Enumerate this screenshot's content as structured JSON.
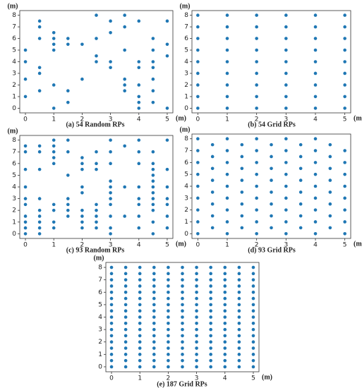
{
  "chart_data": [
    {
      "type": "scatter",
      "title": "(a) 54 Random RPs",
      "xlabel": "(m)",
      "ylabel": "(m)",
      "color": "#1f77b4",
      "xlim": [
        -0.2,
        5.2
      ],
      "ylim": [
        -0.4,
        8.4
      ],
      "xticks": [
        0,
        1,
        2,
        3,
        4,
        5
      ],
      "yticks": [
        0,
        1,
        2,
        3,
        4,
        5,
        6,
        7,
        8
      ],
      "x": [
        0,
        0,
        0,
        0,
        0.5,
        0.5,
        0.5,
        0.5,
        0.5,
        0.5,
        1,
        1,
        1,
        1,
        1,
        1,
        1.5,
        1.5,
        1.5,
        1.5,
        2,
        2,
        2.5,
        2.5,
        2.5,
        2.5,
        3,
        3,
        3,
        3,
        3.5,
        3.5,
        3.5,
        3.5,
        3.5,
        3.5,
        4,
        4,
        4,
        4,
        4,
        4,
        4,
        4.5,
        4.5,
        4.5,
        4.5,
        4.5,
        4.5,
        4.5,
        5,
        5,
        5,
        5
      ],
      "values": [
        5,
        4,
        2.5,
        1,
        7.5,
        7,
        6,
        3.5,
        3,
        1.5,
        6.5,
        6,
        5.5,
        5,
        2,
        0,
        6,
        5.5,
        1.5,
        0.5,
        5.5,
        2.5,
        8,
        6,
        4.5,
        4,
        7.5,
        6.5,
        4,
        3.5,
        8,
        7,
        5,
        2.5,
        2,
        1.5,
        7.5,
        4,
        3.5,
        2,
        1,
        0.5,
        0,
        6,
        5,
        4,
        3.5,
        2.5,
        1.5,
        0.5,
        7.5,
        5.5,
        4.5,
        0
      ]
    },
    {
      "type": "scatter",
      "title": "(b) 54 Grid RPs",
      "xlabel": "(m)",
      "ylabel": "(m)",
      "color": "#1f77b4",
      "xlim": [
        -0.2,
        5.2
      ],
      "ylim": [
        -0.4,
        8.4
      ],
      "xticks": [
        0,
        1,
        2,
        3,
        4,
        5
      ],
      "yticks": [
        0,
        1,
        2,
        3,
        4,
        5,
        6,
        7,
        8
      ],
      "x": [
        0,
        0,
        0,
        0,
        0,
        0,
        0,
        0,
        0,
        1,
        1,
        1,
        1,
        1,
        1,
        1,
        1,
        1,
        2,
        2,
        2,
        2,
        2,
        2,
        2,
        2,
        2,
        3,
        3,
        3,
        3,
        3,
        3,
        3,
        3,
        3,
        4,
        4,
        4,
        4,
        4,
        4,
        4,
        4,
        4,
        5,
        5,
        5,
        5,
        5,
        5,
        5,
        5,
        5
      ],
      "values": [
        0,
        1,
        2,
        3,
        4,
        5,
        6,
        7,
        8,
        0,
        1,
        2,
        3,
        4,
        5,
        6,
        7,
        8,
        0,
        1,
        2,
        3,
        4,
        5,
        6,
        7,
        8,
        0,
        1,
        2,
        3,
        4,
        5,
        6,
        7,
        8,
        0,
        1,
        2,
        3,
        4,
        5,
        6,
        7,
        8,
        0,
        1,
        2,
        3,
        4,
        5,
        6,
        7,
        8
      ]
    },
    {
      "type": "scatter",
      "title": "(c) 93 Random RPs",
      "xlabel": "(m)",
      "ylabel": "(m)",
      "color": "#1f77b4",
      "xlim": [
        -0.2,
        5.2
      ],
      "ylim": [
        -0.4,
        8.4
      ],
      "xticks": [
        0,
        1,
        2,
        3,
        4,
        5
      ],
      "yticks": [
        0,
        1,
        2,
        3,
        4,
        5,
        6,
        7,
        8
      ],
      "x": [
        0,
        0,
        0,
        0,
        0,
        0,
        0,
        0,
        0,
        0,
        0.5,
        0.5,
        0.5,
        0.5,
        0.5,
        0.5,
        0.5,
        0.5,
        0.5,
        1,
        1,
        1,
        1,
        1,
        1,
        1,
        1,
        1,
        1.5,
        1.5,
        1.5,
        1.5,
        1.5,
        1.5,
        1.5,
        2,
        2,
        2,
        2,
        2,
        2,
        2,
        2,
        2,
        2.5,
        2.5,
        2.5,
        2.5,
        2.5,
        2.5,
        2.5,
        2.5,
        3,
        3,
        3,
        3,
        3,
        3,
        3,
        3,
        3,
        3,
        3,
        3.5,
        3.5,
        3.5,
        4,
        4,
        4,
        4,
        4,
        4,
        4,
        4,
        4.5,
        4.5,
        4.5,
        4.5,
        4.5,
        4.5,
        4.5,
        4.5,
        4.5,
        4.5,
        4.5,
        4.5,
        5,
        5,
        5,
        5,
        5,
        5,
        5
      ],
      "values": [
        7.5,
        7,
        5.5,
        4,
        3,
        2.5,
        1.5,
        1,
        0.5,
        0,
        7.5,
        7,
        5.5,
        3,
        2,
        1.5,
        1,
        0.5,
        0,
        8,
        7.5,
        7,
        6.5,
        6,
        2.5,
        2,
        1,
        0.5,
        8,
        7,
        5,
        3,
        2.5,
        2,
        1.5,
        6.5,
        6,
        5.5,
        4,
        3.5,
        2,
        1.5,
        1,
        0.5,
        7,
        6,
        5.5,
        2.5,
        2,
        1.5,
        1,
        0.5,
        8,
        7,
        6,
        4.5,
        4,
        3.5,
        3,
        2.5,
        1.5,
        0.5,
        0,
        7.5,
        4,
        1.5,
        8,
        7,
        6,
        4,
        3,
        2.5,
        1.5,
        0.5,
        7,
        6,
        5.5,
        5,
        4.5,
        4,
        3.5,
        3,
        2.5,
        2,
        1,
        0,
        8,
        5.5,
        4,
        3,
        2.5,
        1.5,
        0.5
      ]
    },
    {
      "type": "scatter",
      "title": "(d) 93 Grid RPs",
      "xlabel": "(m)",
      "ylabel": "(m)",
      "color": "#1f77b4",
      "xlim": [
        -0.2,
        5.2
      ],
      "ylim": [
        -0.4,
        8.4
      ],
      "xticks": [
        0,
        1,
        2,
        3,
        4,
        5
      ],
      "yticks": [
        0,
        1,
        2,
        3,
        4,
        5,
        6,
        7,
        8
      ],
      "x": [
        0,
        0,
        0,
        0,
        0,
        0,
        0,
        0,
        0,
        0.5,
        0.5,
        0.5,
        0.5,
        0.5,
        0.5,
        0.5,
        0.5,
        1,
        1,
        1,
        1,
        1,
        1,
        1,
        1,
        1,
        1.5,
        1.5,
        1.5,
        1.5,
        1.5,
        1.5,
        1.5,
        1.5,
        2,
        2,
        2,
        2,
        2,
        2,
        2,
        2,
        2,
        2.5,
        2.5,
        2.5,
        2.5,
        2.5,
        2.5,
        2.5,
        2.5,
        3,
        3,
        3,
        3,
        3,
        3,
        3,
        3,
        3,
        3.5,
        3.5,
        3.5,
        3.5,
        3.5,
        3.5,
        3.5,
        3.5,
        4,
        4,
        4,
        4,
        4,
        4,
        4,
        4,
        4,
        4.5,
        4.5,
        4.5,
        4.5,
        4.5,
        4.5,
        4.5,
        4.5,
        5,
        5,
        5,
        5,
        5,
        5,
        5,
        5
      ],
      "values": [
        0,
        1,
        2,
        3,
        4,
        5,
        6,
        7,
        8,
        0.5,
        1.5,
        2.5,
        3.5,
        4.5,
        5.5,
        6.5,
        7.5,
        0,
        1,
        2,
        3,
        4,
        5,
        6,
        7,
        8,
        0.5,
        1.5,
        2.5,
        3.5,
        4.5,
        5.5,
        6.5,
        7.5,
        0,
        1,
        2,
        3,
        4,
        5,
        6,
        7,
        8,
        0.5,
        1.5,
        2.5,
        3.5,
        4.5,
        5.5,
        6.5,
        7.5,
        0,
        1,
        2,
        3,
        4,
        5,
        6,
        7,
        8,
        0.5,
        1.5,
        2.5,
        3.5,
        4.5,
        5.5,
        6.5,
        7.5,
        0,
        1,
        2,
        3,
        4,
        5,
        6,
        7,
        8,
        0.5,
        1.5,
        2.5,
        3.5,
        4.5,
        5.5,
        6.5,
        7.5,
        0,
        1,
        2,
        3,
        4,
        5,
        6,
        7
      ]
    },
    {
      "type": "scatter",
      "title": "(e) 187 Grid RPs",
      "xlabel": "(m)",
      "ylabel": "(m)",
      "color": "#1f77b4",
      "xlim": [
        -0.2,
        5.2
      ],
      "ylim": [
        -0.4,
        8.4
      ],
      "xticks": [
        0,
        1,
        2,
        3,
        4,
        5
      ],
      "yticks": [
        0,
        1,
        2,
        3,
        4,
        5,
        6,
        7,
        8
      ],
      "x": [
        0,
        0,
        0,
        0,
        0,
        0,
        0,
        0,
        0,
        0,
        0,
        0,
        0,
        0,
        0,
        0,
        0,
        0.5,
        0.5,
        0.5,
        0.5,
        0.5,
        0.5,
        0.5,
        0.5,
        0.5,
        0.5,
        0.5,
        0.5,
        0.5,
        0.5,
        0.5,
        0.5,
        0.5,
        1,
        1,
        1,
        1,
        1,
        1,
        1,
        1,
        1,
        1,
        1,
        1,
        1,
        1,
        1,
        1,
        1,
        1.5,
        1.5,
        1.5,
        1.5,
        1.5,
        1.5,
        1.5,
        1.5,
        1.5,
        1.5,
        1.5,
        1.5,
        1.5,
        1.5,
        1.5,
        1.5,
        1.5,
        2,
        2,
        2,
        2,
        2,
        2,
        2,
        2,
        2,
        2,
        2,
        2,
        2,
        2,
        2,
        2,
        2,
        2.5,
        2.5,
        2.5,
        2.5,
        2.5,
        2.5,
        2.5,
        2.5,
        2.5,
        2.5,
        2.5,
        2.5,
        2.5,
        2.5,
        2.5,
        2.5,
        2.5,
        3,
        3,
        3,
        3,
        3,
        3,
        3,
        3,
        3,
        3,
        3,
        3,
        3,
        3,
        3,
        3,
        3,
        3.5,
        3.5,
        3.5,
        3.5,
        3.5,
        3.5,
        3.5,
        3.5,
        3.5,
        3.5,
        3.5,
        3.5,
        3.5,
        3.5,
        3.5,
        3.5,
        3.5,
        4,
        4,
        4,
        4,
        4,
        4,
        4,
        4,
        4,
        4,
        4,
        4,
        4,
        4,
        4,
        4,
        4,
        4.5,
        4.5,
        4.5,
        4.5,
        4.5,
        4.5,
        4.5,
        4.5,
        4.5,
        4.5,
        4.5,
        4.5,
        4.5,
        4.5,
        4.5,
        4.5,
        4.5,
        5,
        5,
        5,
        5,
        5,
        5,
        5,
        5,
        5,
        5,
        5,
        5,
        5,
        5,
        5,
        5,
        5
      ],
      "values": [
        0,
        0.5,
        1,
        1.5,
        2,
        2.5,
        3,
        3.5,
        4,
        4.5,
        5,
        5.5,
        6,
        6.5,
        7,
        7.5,
        8,
        0,
        0.5,
        1,
        1.5,
        2,
        2.5,
        3,
        3.5,
        4,
        4.5,
        5,
        5.5,
        6,
        6.5,
        7,
        7.5,
        8,
        0,
        0.5,
        1,
        1.5,
        2,
        2.5,
        3,
        3.5,
        4,
        4.5,
        5,
        5.5,
        6,
        6.5,
        7,
        7.5,
        8,
        0,
        0.5,
        1,
        1.5,
        2,
        2.5,
        3,
        3.5,
        4,
        4.5,
        5,
        5.5,
        6,
        6.5,
        7,
        7.5,
        8,
        0,
        0.5,
        1,
        1.5,
        2,
        2.5,
        3,
        3.5,
        4,
        4.5,
        5,
        5.5,
        6,
        6.5,
        7,
        7.5,
        8,
        0,
        0.5,
        1,
        1.5,
        2,
        2.5,
        3,
        3.5,
        4,
        4.5,
        5,
        5.5,
        6,
        6.5,
        7,
        7.5,
        8,
        0,
        0.5,
        1,
        1.5,
        2,
        2.5,
        3,
        3.5,
        4,
        4.5,
        5,
        5.5,
        6,
        6.5,
        7,
        7.5,
        8,
        0,
        0.5,
        1,
        1.5,
        2,
        2.5,
        3,
        3.5,
        4,
        4.5,
        5,
        5.5,
        6,
        6.5,
        7,
        7.5,
        8,
        0,
        0.5,
        1,
        1.5,
        2,
        2.5,
        3,
        3.5,
        4,
        4.5,
        5,
        5.5,
        6,
        6.5,
        7,
        7.5,
        8,
        0,
        0.5,
        1,
        1.5,
        2,
        2.5,
        3,
        3.5,
        4,
        4.5,
        5,
        5.5,
        6,
        6.5,
        7,
        7.5,
        8,
        0,
        0.5,
        1,
        1.5,
        2,
        2.5,
        3,
        3.5,
        4,
        4.5,
        5,
        5.5,
        6,
        6.5,
        7,
        7.5,
        8
      ]
    }
  ]
}
